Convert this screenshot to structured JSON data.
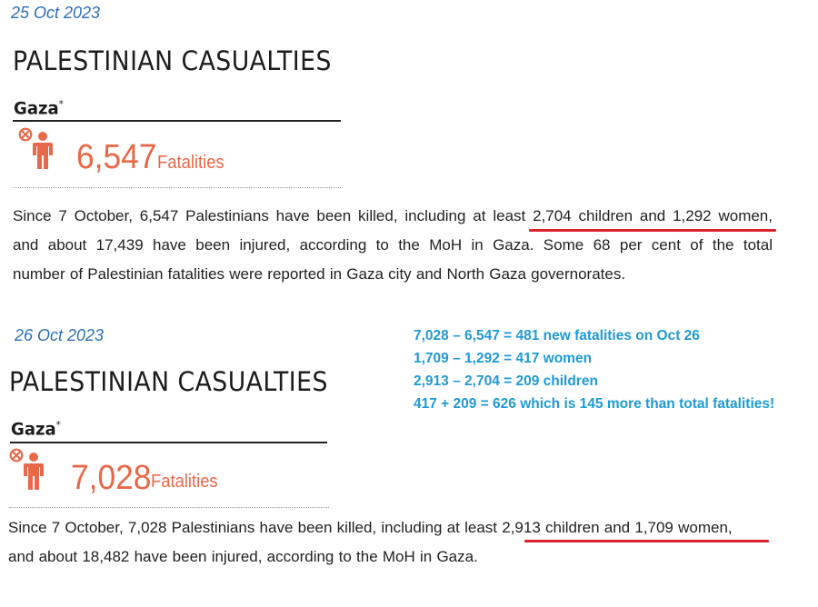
{
  "report_oct25": {
    "date": "25 Oct 2023",
    "title": "PALESTINIAN CASUALTIES",
    "region": "Gaza",
    "region_mark": "*",
    "fatalities_value": "6,547",
    "fatalities_label": "Fatalities",
    "paragraph_lines": [
      "Since 7 October, 6,547 Palestinians have been killed, including at least 2,704 children and 1,292 women,",
      "and about 17,439 have been injured, according to the MoH in Gaza. Some 68 per cent of the total",
      "number of Palestinian fatalities were reported in Gaza city and North Gaza governorates."
    ]
  },
  "report_oct26": {
    "date": "26 Oct 2023",
    "title": "PALESTINIAN CASUALTIES",
    "region": "Gaza",
    "region_mark": "*",
    "fatalities_value": "7,028",
    "fatalities_label": "Fatalities",
    "paragraph_lines": [
      "Since 7 October, 7,028 Palestinians have been killed, including at least 2,913 children and 1,709 women,",
      "and about 18,482 have been injured, according to the MoH in Gaza."
    ]
  },
  "annotation": {
    "lines": [
      "7,028 – 6,547 = 481 new fatalities on Oct 26",
      "1,709 – 1,292 = 417 women",
      "2,913 – 2,704 = 209 children",
      "417 + 209 = 626 which is 145 more than total fatalities!"
    ]
  },
  "colors": {
    "accent_orange": "#e8694a",
    "date_blue": "#2e6fb6",
    "note_blue": "#1f9ad6",
    "underline_red": "#d9222a"
  },
  "icons": {
    "person": "person-icon",
    "close": "close-circle-icon"
  }
}
